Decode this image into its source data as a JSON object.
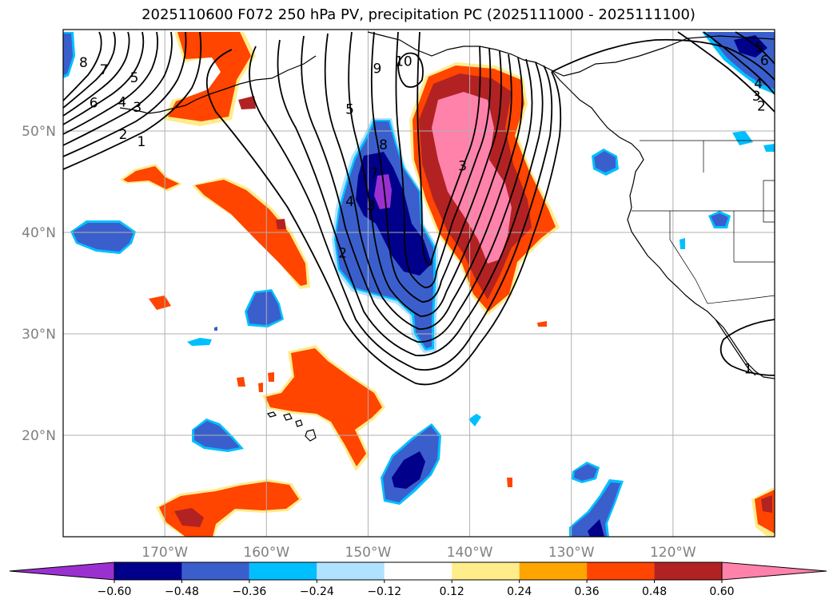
{
  "title": "2025110600 F072 250 hPa PV, precipitation PC (2025111000 - 2025111100)",
  "map": {
    "lon_range": [
      -180,
      -110
    ],
    "lat_range": [
      10,
      60
    ],
    "lat_ticks": [
      {
        "value": 50,
        "label": "50°N"
      },
      {
        "value": 40,
        "label": "40°N"
      },
      {
        "value": 30,
        "label": "30°N"
      },
      {
        "value": 20,
        "label": "20°N"
      }
    ],
    "lon_ticks": [
      {
        "value": -170,
        "label": "170°W"
      },
      {
        "value": -160,
        "label": "160°W"
      },
      {
        "value": -150,
        "label": "150°W"
      },
      {
        "value": -140,
        "label": "140°W"
      },
      {
        "value": -130,
        "label": "130°W"
      },
      {
        "value": -120,
        "label": "120°W"
      }
    ],
    "gridlines": true,
    "contour_labels": [
      {
        "text": "8",
        "lon": -178,
        "lat": 56.7
      },
      {
        "text": "7",
        "lon": -176,
        "lat": 56
      },
      {
        "text": "6",
        "lon": -177,
        "lat": 52.7
      },
      {
        "text": "5",
        "lon": -173,
        "lat": 55.2
      },
      {
        "text": "4",
        "lon": -174.2,
        "lat": 52.8
      },
      {
        "text": "3",
        "lon": -172.7,
        "lat": 52.3
      },
      {
        "text": "2",
        "lon": -174.1,
        "lat": 49.6
      },
      {
        "text": "1",
        "lon": -172.3,
        "lat": 48.9
      },
      {
        "text": "5",
        "lon": -151.8,
        "lat": 52.1
      },
      {
        "text": "9",
        "lon": -149.1,
        "lat": 56.1
      },
      {
        "text": "10",
        "lon": -146.5,
        "lat": 56.8
      },
      {
        "text": "8",
        "lon": -148.5,
        "lat": 48.6
      },
      {
        "text": "7",
        "lon": -149.4,
        "lat": 45.8
      },
      {
        "text": "4",
        "lon": -151.8,
        "lat": 43
      },
      {
        "text": "3",
        "lon": -149.7,
        "lat": 42.6
      },
      {
        "text": "2",
        "lon": -152.5,
        "lat": 37.9
      },
      {
        "text": "3",
        "lon": -140.7,
        "lat": 46.5
      },
      {
        "text": "5",
        "lon": -111.5,
        "lat": 58.2
      },
      {
        "text": "6",
        "lon": -111,
        "lat": 56.9
      },
      {
        "text": "4",
        "lon": -111.6,
        "lat": 54.6
      },
      {
        "text": "3",
        "lon": -111.8,
        "lat": 53.4
      },
      {
        "text": "2",
        "lon": -111.3,
        "lat": 52.4
      },
      {
        "text": "1",
        "lon": -112.6,
        "lat": 26.5
      }
    ]
  },
  "colorbar": {
    "levels": [
      -0.72,
      -0.6,
      -0.48,
      -0.36,
      -0.24,
      -0.12,
      0.12,
      0.24,
      0.36,
      0.48,
      0.6,
      0.72
    ],
    "tick_labels": [
      "−0.60",
      "−0.48",
      "−0.36",
      "−0.24",
      "−0.12",
      "0.12",
      "0.24",
      "0.36",
      "0.48",
      "0.60"
    ],
    "colors": [
      "#9b30d0",
      "#00008b",
      "#3a5fcd",
      "#00bfff",
      "#b0e2ff",
      "#ffffff",
      "#ffec8b",
      "#ffa500",
      "#ff4500",
      "#b22222",
      "#ff82ab"
    ],
    "extend": "both"
  },
  "colors": {
    "land": "#ffffff",
    "coast": "#000000",
    "grid": "#b0b0b0",
    "contour": "#000000"
  }
}
